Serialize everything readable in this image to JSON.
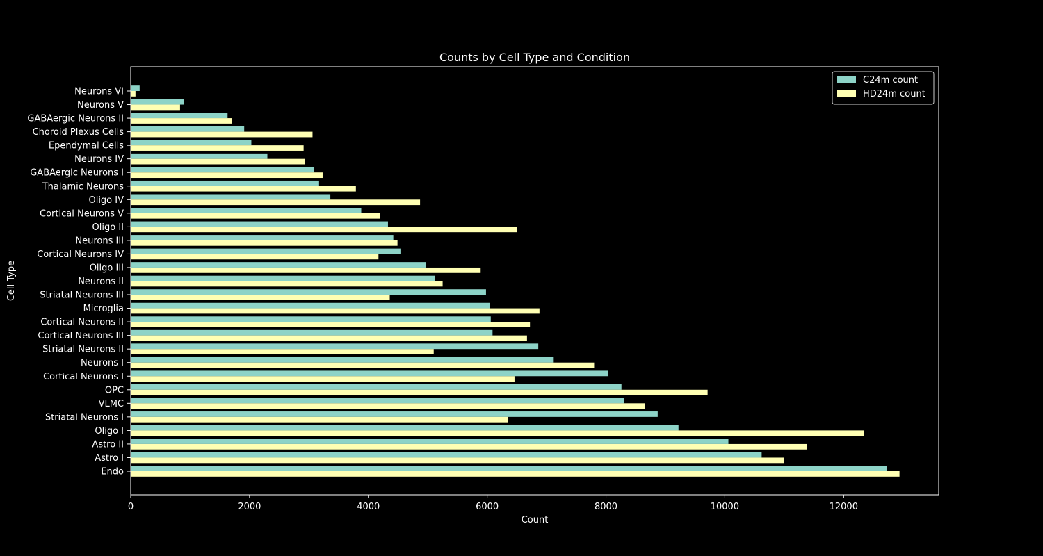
{
  "chart_data": {
    "type": "bar",
    "orientation": "horizontal",
    "title": "Counts by Cell Type and Condition",
    "xlabel": "Count",
    "ylabel": "Cell Type",
    "xlim": [
      0,
      13600
    ],
    "xticks": [
      0,
      2000,
      4000,
      6000,
      8000,
      10000,
      12000
    ],
    "grid": false,
    "legend_position": "top-right",
    "categories": [
      "Endo",
      "Astro I",
      "Astro II",
      "Oligo I",
      "Striatal Neurons I",
      "VLMC",
      "OPC",
      "Cortical Neurons I",
      "Neurons I",
      "Striatal Neurons II",
      "Cortical Neurons III",
      "Cortical Neurons II",
      "Microglia",
      "Striatal Neurons III",
      "Neurons II",
      "Oligo III",
      "Cortical Neurons IV",
      "Neurons III",
      "Oligo II",
      "Cortical Neurons V",
      "Oligo IV",
      "Thalamic Neurons",
      "GABAergic Neurons I",
      "Neurons IV",
      "Ependymal Cells",
      "Choroid Plexus Cells",
      "GABAergic Neurons II",
      "Neurons V",
      "Neurons VI"
    ],
    "series": [
      {
        "name": "C24m count",
        "color": "#8dd3c7",
        "values": [
          12730,
          10620,
          10060,
          9220,
          8870,
          8300,
          8260,
          8040,
          7120,
          6860,
          6090,
          6060,
          6050,
          5980,
          5120,
          4970,
          4540,
          4420,
          4330,
          3880,
          3360,
          3170,
          3090,
          2300,
          2030,
          1910,
          1630,
          900,
          150
        ]
      },
      {
        "name": "HD24m count",
        "color": "#ffffb3",
        "values": [
          12940,
          10990,
          11380,
          12340,
          6350,
          8660,
          9710,
          6460,
          7800,
          5100,
          6670,
          6720,
          6880,
          4360,
          5250,
          5890,
          4170,
          4490,
          6500,
          4190,
          4870,
          3790,
          3230,
          2930,
          2910,
          3060,
          1700,
          830,
          80
        ]
      }
    ]
  }
}
